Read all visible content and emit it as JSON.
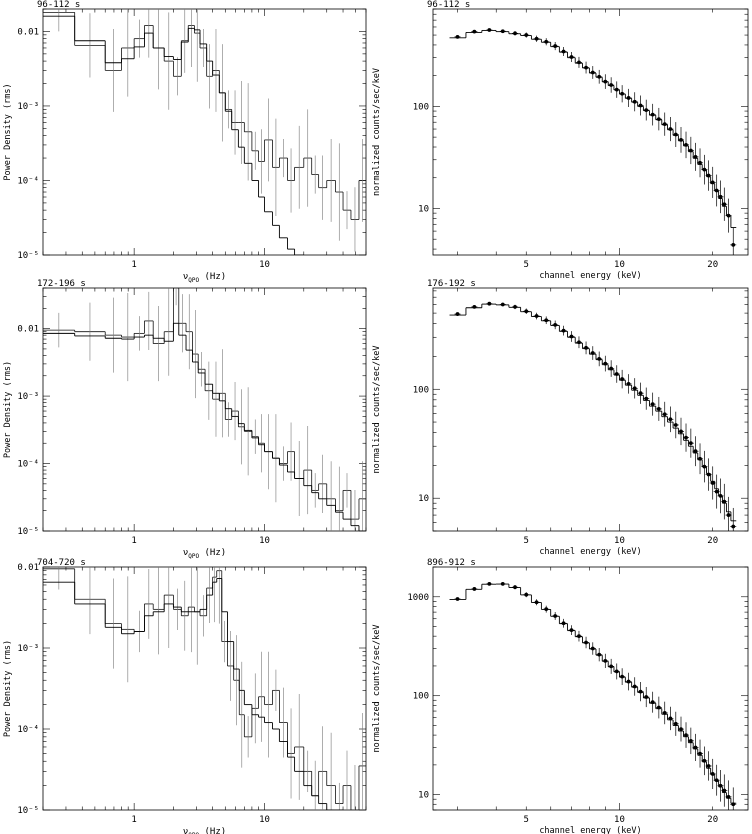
{
  "chart_data": [
    {
      "type": "line",
      "title": "96-112 s",
      "xlabel_main": "ν",
      "xlabel_sub": "QPO",
      "xlabel_tail": " (Hz)",
      "ylabel": "Power Density (rms)",
      "x_scale": "log",
      "y_scale": "log",
      "xlim": [
        0.2,
        60
      ],
      "ylim": [
        1e-05,
        0.02
      ],
      "x_ticks": [
        {
          "v": 1,
          "label": "1"
        },
        {
          "v": 10,
          "label": "10"
        }
      ],
      "y_ticks": [
        {
          "v": 0.01,
          "label": "0.01"
        },
        {
          "v": 0.001,
          "label": "10⁻³"
        },
        {
          "v": 0.0001,
          "label": "10⁻⁴"
        },
        {
          "v": 1e-05,
          "label": "10⁻⁵"
        }
      ],
      "data_x": [
        0.2,
        0.35,
        0.6,
        0.8,
        1.0,
        1.2,
        1.4,
        1.7,
        2.0,
        2.3,
        2.6,
        2.9,
        3.2,
        3.6,
        4.0,
        4.5,
        5.0,
        5.6,
        6.3,
        7.0,
        8.0,
        9.0,
        10,
        11.5,
        13,
        15,
        17,
        20,
        23,
        26,
        30,
        35,
        40,
        46,
        53,
        60
      ],
      "data_y": [
        0.018,
        0.0065,
        0.003,
        0.006,
        0.008,
        0.012,
        0.006,
        0.004,
        0.0025,
        0.0075,
        0.012,
        0.0095,
        0.006,
        0.0025,
        0.003,
        0.0015,
        0.0009,
        0.0006,
        0.0006,
        0.00045,
        0.00025,
        0.00018,
        0.00035,
        0.00015,
        0.0002,
        0.0001,
        0.00015,
        0.0002,
        0.00012,
        8e-05,
        0.0001,
        7e-05,
        4e-05,
        3e-05,
        0.0001,
        2e-05
      ],
      "model_x": [
        0.2,
        0.35,
        0.6,
        0.8,
        1.0,
        1.2,
        1.4,
        1.7,
        2.0,
        2.3,
        2.6,
        2.9,
        3.2,
        3.6,
        4.0,
        4.5,
        5.0,
        5.6,
        6.3,
        7.0,
        8.0,
        9.0,
        10,
        11.5,
        13,
        15,
        17,
        20
      ],
      "model_y": [
        0.016,
        0.0075,
        0.0038,
        0.0043,
        0.0062,
        0.0095,
        0.006,
        0.0046,
        0.0042,
        0.0072,
        0.011,
        0.0105,
        0.0068,
        0.004,
        0.0026,
        0.0015,
        0.00085,
        0.00048,
        0.00028,
        0.00017,
        0.0001,
        6e-05,
        3.8e-05,
        2.5e-05,
        1.7e-05,
        1.2e-05,
        9.5e-06,
        8e-06
      ]
    },
    {
      "type": "scatter",
      "title": "96-112 s",
      "xlabel": "channel energy (keV)",
      "ylabel": "normalized counts/sec/keV",
      "x_scale": "log",
      "y_scale": "log",
      "xlim": [
        2.5,
        26
      ],
      "ylim": [
        3.5,
        900
      ],
      "x_ticks": [
        {
          "v": 5,
          "label": "5"
        },
        {
          "v": 10,
          "label": "10"
        },
        {
          "v": 20,
          "label": "20"
        }
      ],
      "y_ticks": [
        {
          "v": 10,
          "label": "10"
        },
        {
          "v": 100,
          "label": "100"
        }
      ],
      "points_x": [
        3,
        3.4,
        3.8,
        4.2,
        4.6,
        5.0,
        5.4,
        5.8,
        6.2,
        6.6,
        7.0,
        7.4,
        7.8,
        8.2,
        8.6,
        9.0,
        9.4,
        9.8,
        10.2,
        10.7,
        11.2,
        11.7,
        12.2,
        12.8,
        13.4,
        14.0,
        14.6,
        15.2,
        15.8,
        16.4,
        17.0,
        17.6,
        18.2,
        18.8,
        19.4,
        20.0,
        20.6,
        21.2,
        21.8,
        22.5,
        23.3
      ],
      "points_y": [
        480,
        540,
        560,
        545,
        520,
        500,
        460,
        430,
        390,
        345,
        305,
        270,
        240,
        215,
        195,
        175,
        162,
        146,
        133,
        121,
        111,
        102,
        92,
        83,
        75,
        67,
        60,
        53,
        47,
        42,
        37,
        32,
        28,
        24,
        21,
        18,
        15,
        13,
        11,
        8.5,
        4.4
      ],
      "model_y": [
        470,
        530,
        555,
        540,
        515,
        495,
        455,
        425,
        385,
        340,
        300,
        265,
        238,
        212,
        193,
        174,
        160,
        145,
        132,
        120,
        110,
        100,
        91,
        82,
        74,
        66,
        59,
        52,
        46,
        41,
        36,
        31,
        27,
        24,
        20.5,
        17.5,
        14.8,
        12.5,
        10.5,
        8.5,
        6.5
      ]
    },
    {
      "type": "line",
      "title": "172-196 s",
      "xlabel_main": "ν",
      "xlabel_sub": "QPO",
      "xlabel_tail": " (Hz)",
      "ylabel": "Power Density (rms)",
      "x_scale": "log",
      "y_scale": "log",
      "xlim": [
        0.2,
        60
      ],
      "ylim": [
        1e-05,
        0.04
      ],
      "x_ticks": [
        {
          "v": 1,
          "label": "1"
        },
        {
          "v": 10,
          "label": "10"
        }
      ],
      "y_ticks": [
        {
          "v": 0.01,
          "label": "0.01"
        },
        {
          "v": 0.001,
          "label": "10⁻³"
        },
        {
          "v": 0.0001,
          "label": "10⁻⁴"
        },
        {
          "v": 1e-05,
          "label": "10⁻⁵"
        }
      ],
      "data_x": [
        0.2,
        0.35,
        0.6,
        0.8,
        1.0,
        1.2,
        1.4,
        1.7,
        2.0,
        2.2,
        2.5,
        2.8,
        3.1,
        3.5,
        4.0,
        4.5,
        5.0,
        5.6,
        6.3,
        7.0,
        8.0,
        9.0,
        10,
        11.5,
        13,
        15,
        17,
        20,
        23,
        26,
        30,
        35,
        40,
        46,
        53,
        60
      ],
      "data_y": [
        0.0095,
        0.009,
        0.008,
        0.0075,
        0.0085,
        0.013,
        0.006,
        0.009,
        0.04,
        0.012,
        0.009,
        0.0042,
        0.0025,
        0.0012,
        0.0009,
        0.0011,
        0.00045,
        0.0006,
        0.00035,
        0.0003,
        0.00025,
        0.0002,
        0.00015,
        0.00012,
        0.0001,
        0.00015,
        6e-05,
        8e-05,
        4e-05,
        5e-05,
        3e-05,
        2e-05,
        4e-05,
        1.5e-05,
        3e-05,
        1.5e-05
      ],
      "model_x": [
        0.2,
        0.35,
        0.6,
        0.8,
        1.0,
        1.2,
        1.4,
        1.7,
        2.0,
        2.2,
        2.5,
        2.8,
        3.1,
        3.5,
        4.0,
        4.5,
        5.0,
        5.6,
        6.3,
        7.0,
        8.0,
        9.0,
        10,
        11.5,
        13,
        15,
        17,
        20,
        23,
        26,
        30,
        35,
        40,
        46,
        53,
        60
      ],
      "model_y": [
        0.0085,
        0.0078,
        0.0072,
        0.007,
        0.0075,
        0.008,
        0.0072,
        0.0065,
        0.012,
        0.008,
        0.0048,
        0.0032,
        0.0022,
        0.0015,
        0.0011,
        0.00085,
        0.00065,
        0.0005,
        0.00039,
        0.00031,
        0.00024,
        0.00019,
        0.00015,
        0.00012,
        9.5e-05,
        7.5e-05,
        6e-05,
        4.7e-05,
        3.7e-05,
        3e-05,
        2.4e-05,
        1.9e-05,
        1.5e-05,
        1.2e-05,
        1e-05,
        8.5e-06
      ]
    },
    {
      "type": "scatter",
      "title": "176-192 s",
      "xlabel": "channel energy (keV)",
      "ylabel": "normalized counts/sec/keV",
      "x_scale": "log",
      "y_scale": "log",
      "xlim": [
        2.5,
        26
      ],
      "ylim": [
        5,
        850
      ],
      "x_ticks": [
        {
          "v": 5,
          "label": "5"
        },
        {
          "v": 10,
          "label": "10"
        },
        {
          "v": 20,
          "label": "20"
        }
      ],
      "y_ticks": [
        {
          "v": 10,
          "label": "10"
        },
        {
          "v": 100,
          "label": "100"
        }
      ],
      "points_x": [
        3,
        3.4,
        3.8,
        4.2,
        4.6,
        5.0,
        5.4,
        5.8,
        6.2,
        6.6,
        7.0,
        7.4,
        7.8,
        8.2,
        8.6,
        9.0,
        9.4,
        9.8,
        10.2,
        10.7,
        11.2,
        11.7,
        12.2,
        12.8,
        13.4,
        14.0,
        14.6,
        15.2,
        15.8,
        16.4,
        17.0,
        17.6,
        18.2,
        18.8,
        19.4,
        20.0,
        20.6,
        21.2,
        21.8,
        22.5,
        23.3
      ],
      "points_y": [
        490,
        570,
        610,
        600,
        570,
        520,
        470,
        430,
        390,
        345,
        305,
        270,
        240,
        215,
        190,
        172,
        155,
        138,
        124,
        112,
        102,
        92,
        82,
        73,
        66,
        59,
        53,
        47,
        41,
        36,
        32,
        27,
        23,
        19.5,
        16.5,
        13.8,
        11.5,
        10.5,
        9.3,
        7.0,
        5.5
      ],
      "model_y": [
        480,
        560,
        605,
        595,
        565,
        515,
        465,
        425,
        385,
        340,
        300,
        265,
        236,
        210,
        187,
        168,
        151,
        135,
        121,
        109,
        98,
        88,
        79,
        70,
        63,
        56,
        50,
        44,
        39,
        34,
        30,
        26,
        22.5,
        19.5,
        16.8,
        14.3,
        12.2,
        10.5,
        9.0,
        7.5,
        6.2
      ]
    },
    {
      "type": "line",
      "title": "704-720 s",
      "xlabel_main": "ν",
      "xlabel_sub": "QPO",
      "xlabel_tail": " (Hz)",
      "ylabel": "Power Density (rms)",
      "x_scale": "log",
      "y_scale": "log",
      "xlim": [
        0.2,
        60
      ],
      "ylim": [
        1e-05,
        0.01
      ],
      "x_ticks": [
        {
          "v": 1,
          "label": "1"
        },
        {
          "v": 10,
          "label": "10"
        }
      ],
      "y_ticks": [
        {
          "v": 0.01,
          "label": "0.01"
        },
        {
          "v": 0.001,
          "label": "10⁻³"
        },
        {
          "v": 0.0001,
          "label": "10⁻⁴"
        },
        {
          "v": 1e-05,
          "label": "10⁻⁵"
        }
      ],
      "data_x": [
        0.2,
        0.35,
        0.6,
        0.8,
        1.0,
        1.2,
        1.4,
        1.7,
        2.0,
        2.3,
        2.6,
        2.9,
        3.2,
        3.6,
        4.0,
        4.3,
        4.7,
        5.2,
        5.8,
        6.4,
        7.0,
        8.0,
        9.0,
        10,
        11.5,
        13,
        15,
        17,
        20,
        23,
        26,
        30,
        35,
        40,
        46,
        53,
        60
      ],
      "data_y": [
        0.0095,
        0.004,
        0.002,
        0.0017,
        0.0016,
        0.0035,
        0.003,
        0.0045,
        0.003,
        0.0025,
        0.0032,
        0.0028,
        0.0025,
        0.0055,
        0.0075,
        0.009,
        0.0012,
        0.0006,
        0.0004,
        0.00015,
        8e-05,
        0.00018,
        0.00025,
        0.0002,
        0.0003,
        0.00012,
        5e-05,
        6e-05,
        3e-05,
        1.5e-05,
        3e-05,
        2e-05,
        1.2e-05,
        2e-05,
        1e-05,
        3.5e-05,
        1.5e-05
      ],
      "model_x": [
        0.2,
        0.35,
        0.6,
        0.8,
        1.0,
        1.2,
        1.4,
        1.7,
        2.0,
        2.3,
        2.6,
        2.9,
        3.2,
        3.6,
        4.0,
        4.3,
        4.7,
        5.2,
        5.8,
        6.4,
        7.0,
        8.0,
        9.0,
        10,
        11.5,
        13,
        15,
        17,
        20,
        23,
        26,
        30,
        35,
        40
      ],
      "model_y": [
        0.0065,
        0.0035,
        0.0018,
        0.0015,
        0.0016,
        0.0025,
        0.0028,
        0.0035,
        0.0032,
        0.0028,
        0.0028,
        0.0028,
        0.003,
        0.0045,
        0.0065,
        0.0072,
        0.0028,
        0.0012,
        0.00055,
        0.0003,
        0.0002,
        0.00015,
        0.00014,
        0.00012,
        0.0001,
        7e-05,
        4.5e-05,
        3e-05,
        2e-05,
        1.5e-05,
        1.2e-05,
        1e-05,
        8.5e-06,
        7e-06
      ]
    },
    {
      "type": "scatter",
      "title": "896-912 s",
      "xlabel": "channel energy (keV)",
      "ylabel": "normalized counts/sec/keV",
      "x_scale": "log",
      "y_scale": "log",
      "xlim": [
        2.5,
        26
      ],
      "ylim": [
        7,
        2000
      ],
      "x_ticks": [
        {
          "v": 5,
          "label": "5"
        },
        {
          "v": 10,
          "label": "10"
        },
        {
          "v": 20,
          "label": "20"
        }
      ],
      "y_ticks": [
        {
          "v": 10,
          "label": "10"
        },
        {
          "v": 100,
          "label": "100"
        },
        {
          "v": 1000,
          "label": "1000"
        }
      ],
      "points_x": [
        3,
        3.4,
        3.8,
        4.2,
        4.6,
        5.0,
        5.4,
        5.8,
        6.2,
        6.6,
        7.0,
        7.4,
        7.8,
        8.2,
        8.6,
        9.0,
        9.4,
        9.8,
        10.2,
        10.7,
        11.2,
        11.7,
        12.2,
        12.8,
        13.4,
        14.0,
        14.6,
        15.2,
        15.8,
        16.4,
        17.0,
        17.6,
        18.2,
        18.8,
        19.4,
        20.0,
        20.6,
        21.2,
        21.8,
        22.5,
        23.3
      ],
      "points_y": [
        950,
        1200,
        1350,
        1350,
        1250,
        1050,
        880,
        750,
        640,
        540,
        460,
        400,
        345,
        300,
        260,
        225,
        198,
        176,
        156,
        139,
        124,
        110,
        97,
        86,
        76,
        67,
        59,
        52,
        46,
        40,
        35,
        30,
        26,
        22,
        19.5,
        16.2,
        14.0,
        12.3,
        11.0,
        9.5,
        8.0
      ],
      "model_y": [
        940,
        1190,
        1340,
        1345,
        1240,
        1045,
        875,
        745,
        635,
        535,
        455,
        395,
        342,
        297,
        257,
        223,
        196,
        174,
        154,
        137,
        122,
        108,
        95,
        84,
        74,
        65,
        57,
        50,
        44,
        38.5,
        33.5,
        29,
        25,
        21.5,
        18.5,
        16,
        13.8,
        12,
        10.5,
        9.2,
        8.2
      ]
    }
  ]
}
